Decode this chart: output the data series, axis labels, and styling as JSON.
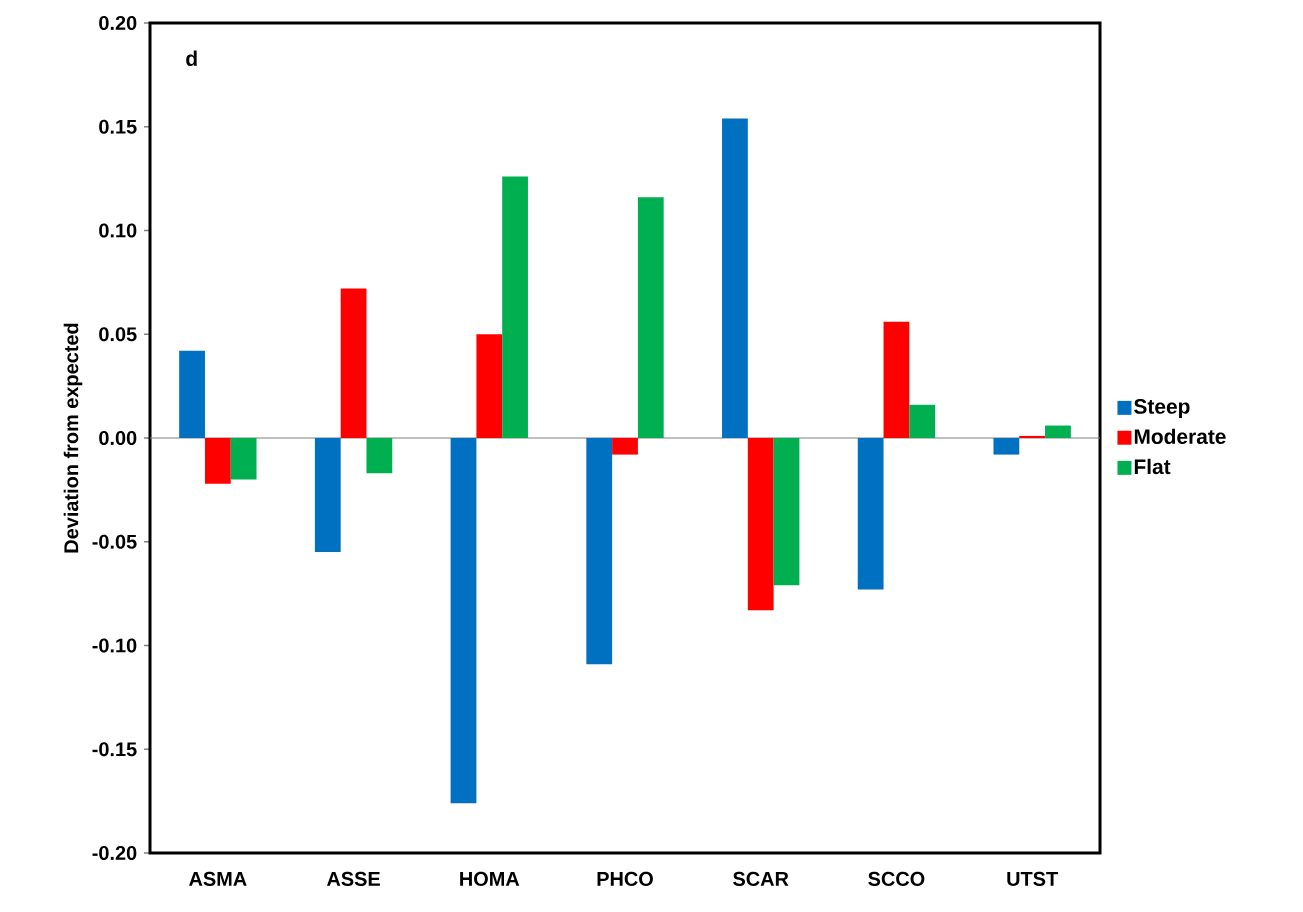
{
  "chart_data": {
    "type": "bar",
    "ylabel": "Deviation from expected",
    "annotations": [
      "d"
    ],
    "categories": [
      "ASMA",
      "ASSE",
      "HOMA",
      "PHCO",
      "SCAR",
      "SCCO",
      "UTST"
    ],
    "series": [
      {
        "name": "Steep",
        "color": "#0070c0",
        "values": [
          0.042,
          -0.055,
          -0.176,
          -0.109,
          0.154,
          -0.073,
          -0.008
        ]
      },
      {
        "name": "Moderate",
        "color": "#ff0000",
        "values": [
          -0.022,
          0.072,
          0.05,
          -0.008,
          -0.083,
          0.056,
          0.001
        ]
      },
      {
        "name": "Flat",
        "color": "#00b050",
        "values": [
          -0.02,
          -0.017,
          0.126,
          0.116,
          -0.071,
          0.016,
          0.006
        ]
      }
    ],
    "ylim": [
      -0.2,
      0.2
    ],
    "yticks": [
      {
        "value": -0.2,
        "label": "-0.20"
      },
      {
        "value": -0.15,
        "label": "-0.15"
      },
      {
        "value": -0.1,
        "label": "-0.10"
      },
      {
        "value": -0.05,
        "label": "-0.05"
      },
      {
        "value": 0,
        "label": "0.00"
      },
      {
        "value": 0.05,
        "label": "0.05"
      },
      {
        "value": 0.1,
        "label": "0.10"
      },
      {
        "value": 0.15,
        "label": "0.15"
      },
      {
        "value": 0.2,
        "label": "0.20"
      }
    ],
    "legend": "right"
  }
}
